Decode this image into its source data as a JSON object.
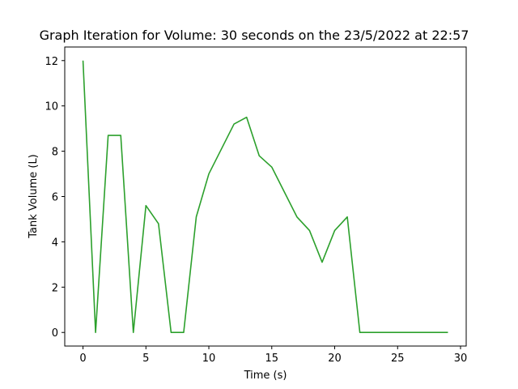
{
  "chart_data": {
    "type": "line",
    "title": "Graph Iteration for Volume: 30 seconds on the 23/5/2022 at 22:57",
    "xlabel": "Time (s)",
    "ylabel": "Tank Volume (L)",
    "xlim": [
      -1.45,
      30.45
    ],
    "ylim": [
      -0.6,
      12.6
    ],
    "xticks": [
      0,
      5,
      10,
      15,
      20,
      25,
      30
    ],
    "yticks": [
      0,
      2,
      4,
      6,
      8,
      10,
      12
    ],
    "grid": false,
    "series": [
      {
        "color": "#2ca02c",
        "x": [
          0,
          1,
          2,
          3,
          4,
          5,
          6,
          7,
          8,
          9,
          10,
          11,
          12,
          13,
          14,
          15,
          16,
          17,
          18,
          19,
          20,
          21,
          22,
          23,
          24,
          25,
          26,
          27,
          28,
          29
        ],
        "y": [
          12,
          0,
          8.7,
          8.7,
          0,
          5.6,
          4.8,
          0,
          0,
          5.1,
          7,
          8.1,
          9.2,
          9.5,
          7.8,
          7.3,
          6.2,
          5.1,
          4.5,
          3.1,
          4.5,
          5.1,
          0,
          0,
          0,
          0,
          0,
          0,
          0,
          0
        ]
      }
    ]
  }
}
